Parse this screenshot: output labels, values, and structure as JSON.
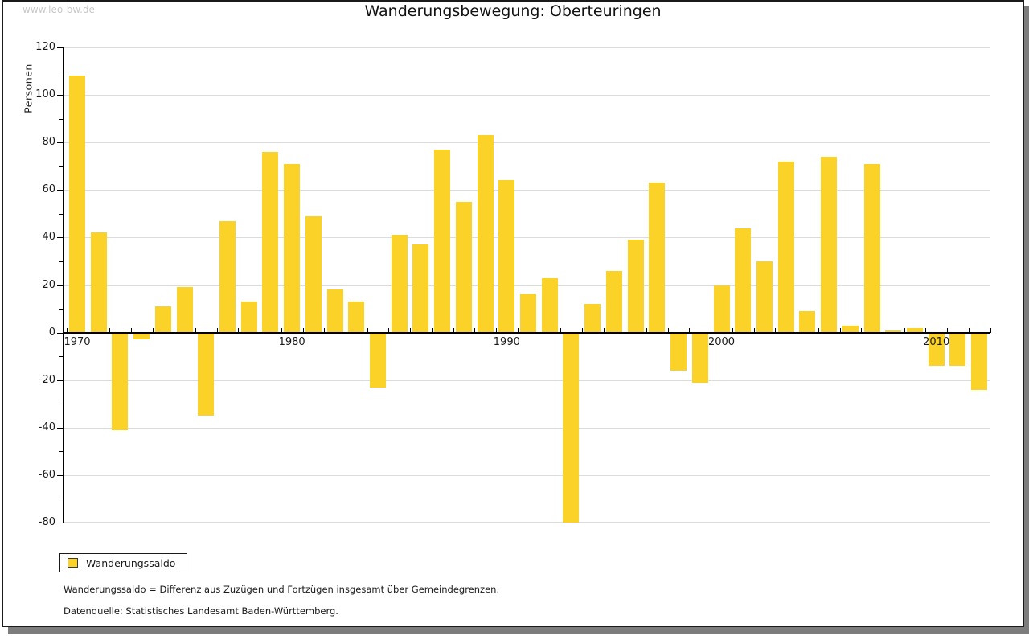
{
  "watermark": "www.leo-bw.de",
  "title": "Wanderungsbewegung: Oberteuringen",
  "legend": {
    "label": "Wanderungssaldo"
  },
  "footnotes": [
    "Wanderungssaldo = Differenz aus Zuzügen und Fortzügen insgesamt über Gemeindegrenzen.",
    "Datenquelle: Statistisches Landesamt Baden-Württemberg."
  ],
  "colors": {
    "bar": "#FBD228",
    "grid": "#DCDCDC",
    "axis": "#000000",
    "text": "#1A1A1A",
    "watermark": "#C8C8C8",
    "shadow": "#7D7D7D"
  },
  "chart_data": {
    "type": "bar",
    "title": "Wanderungsbewegung: Oberteuringen",
    "xlabel": "",
    "ylabel": "Personen",
    "ylim": [
      -80,
      120
    ],
    "ytick_step": 20,
    "ytick_minor_step": 10,
    "grid": true,
    "legend_position": "bottom-left",
    "xtick_labels": [
      "1970",
      "1980",
      "1990",
      "2000",
      "2010"
    ],
    "categories": [
      1970,
      1971,
      1972,
      1973,
      1974,
      1975,
      1976,
      1977,
      1978,
      1979,
      1980,
      1981,
      1982,
      1983,
      1984,
      1985,
      1986,
      1987,
      1988,
      1989,
      1990,
      1991,
      1992,
      1993,
      1994,
      1995,
      1996,
      1997,
      1998,
      1999,
      2000,
      2001,
      2002,
      2003,
      2004,
      2005,
      2006,
      2007,
      2008,
      2009,
      2010,
      2011,
      2012
    ],
    "series": [
      {
        "name": "Wanderungssaldo",
        "values": [
          108,
          42,
          -41,
          -3,
          11,
          19,
          -35,
          47,
          13,
          76,
          71,
          49,
          18,
          13,
          -23,
          41,
          37,
          77,
          55,
          83,
          64,
          16,
          23,
          -80,
          12,
          26,
          39,
          63,
          -16,
          -21,
          20,
          44,
          30,
          72,
          9,
          74,
          3,
          71,
          1,
          2,
          -14,
          -14,
          -24
        ]
      }
    ]
  }
}
